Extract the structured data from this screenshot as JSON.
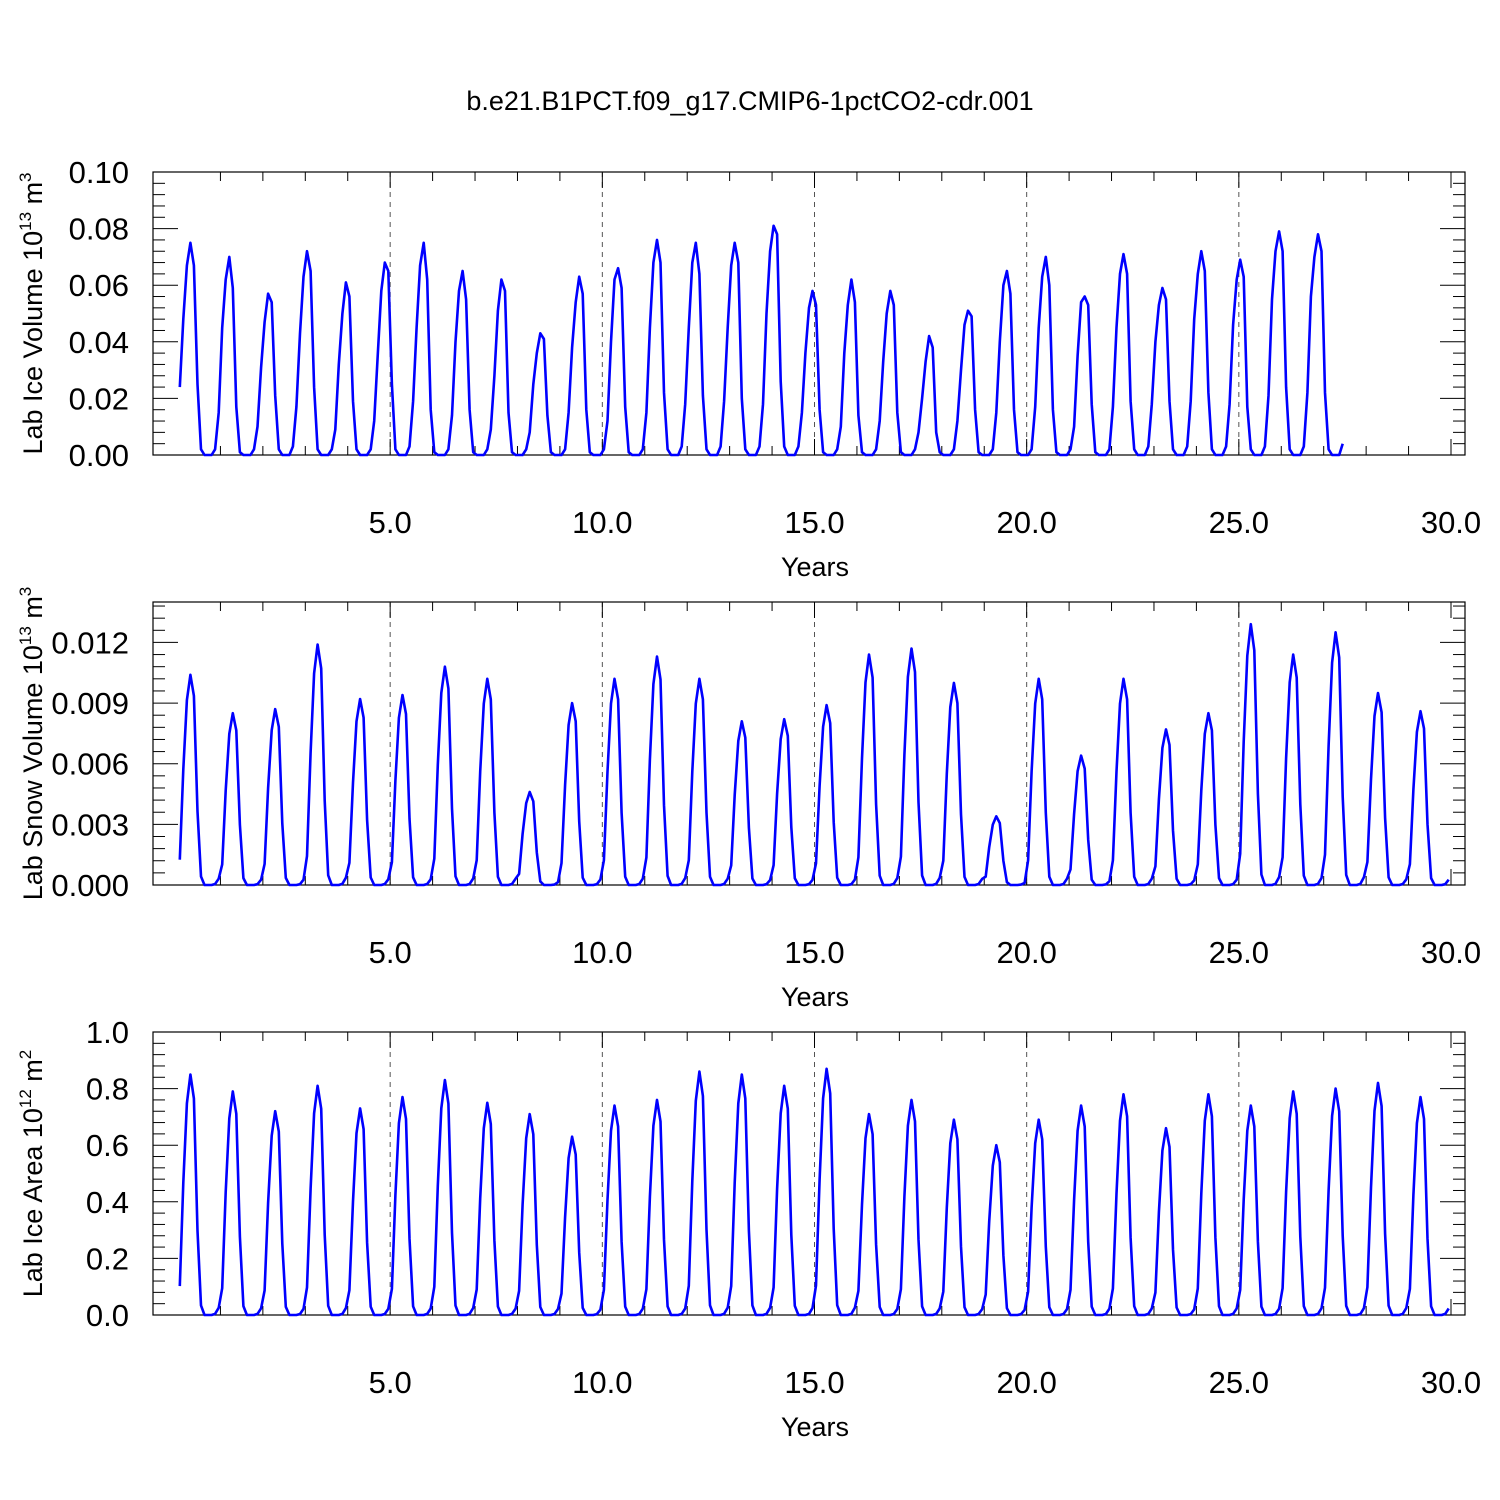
{
  "figure": {
    "title": "b.e21.B1PCT.f09_g17.CMIP6-1pctCO2-cdr.001"
  },
  "chart_data": [
    {
      "type": "line",
      "xlabel": "Years",
      "ylabel": {
        "prefix": "Lab Ice Volume 10",
        "exp": "13",
        "unit": " m",
        "unit_exp": "3"
      },
      "xlim": [
        0,
        30
      ],
      "ylim": [
        0,
        0.1
      ],
      "x_ticks": [
        "5.0",
        "10.0",
        "15.0",
        "20.0",
        "25.0",
        "30.0"
      ],
      "y_ticks": [
        "0.00",
        "0.02",
        "0.04",
        "0.06",
        "0.08",
        "0.10"
      ],
      "y_tick_values": [
        0,
        0.02,
        0.04,
        0.06,
        0.08,
        0.1
      ],
      "grid": "dashed vertical lines at 5, 10, 15, 20, 25",
      "line_color": "#0000ff",
      "series": [
        {
          "start_year": 0.042,
          "step": 0.0833,
          "values": [
            0.024,
            0.048,
            0.067,
            0.075,
            0.067,
            0.025,
            0.002,
            0,
            0,
            0,
            0.002,
            0.015,
            0.045,
            0.062,
            0.07,
            0.059,
            0.017,
            0.001,
            0,
            0,
            0,
            0.002,
            0.01,
            0.031,
            0.047,
            0.057,
            0.054,
            0.021,
            0.002,
            0,
            0,
            0,
            0.003,
            0.017,
            0.043,
            0.063,
            0.072,
            0.065,
            0.024,
            0.002,
            0,
            0,
            0,
            0.002,
            0.009,
            0.032,
            0.05,
            0.061,
            0.056,
            0.019,
            0.002,
            0,
            0,
            0,
            0.002,
            0.012,
            0.035,
            0.058,
            0.068,
            0.065,
            0.025,
            0.002,
            0,
            0,
            0,
            0.003,
            0.019,
            0.045,
            0.067,
            0.075,
            0.062,
            0.016,
            0.001,
            0,
            0,
            0,
            0.002,
            0.014,
            0.04,
            0.058,
            0.065,
            0.055,
            0.016,
            0.001,
            0,
            0,
            0,
            0.002,
            0.009,
            0.028,
            0.051,
            0.062,
            0.058,
            0.015,
            0.001,
            0,
            0,
            0,
            0.002,
            0.008,
            0.025,
            0.036,
            0.043,
            0.041,
            0.014,
            0.001,
            0,
            0,
            0,
            0.002,
            0.015,
            0.038,
            0.054,
            0.063,
            0.057,
            0.016,
            0.001,
            0,
            0,
            0,
            0.002,
            0.012,
            0.04,
            0.062,
            0.066,
            0.059,
            0.017,
            0.001,
            0,
            0,
            0,
            0.002,
            0.015,
            0.045,
            0.068,
            0.076,
            0.068,
            0.022,
            0.002,
            0,
            0,
            0,
            0.003,
            0.018,
            0.045,
            0.068,
            0.075,
            0.064,
            0.021,
            0.002,
            0,
            0,
            0,
            0.003,
            0.019,
            0.045,
            0.067,
            0.075,
            0.068,
            0.02,
            0.002,
            0,
            0,
            0,
            0.003,
            0.018,
            0.05,
            0.072,
            0.081,
            0.078,
            0.026,
            0.003,
            0,
            0,
            0,
            0.003,
            0.015,
            0.036,
            0.052,
            0.058,
            0.053,
            0.016,
            0.001,
            0,
            0,
            0,
            0.002,
            0.01,
            0.036,
            0.053,
            0.062,
            0.054,
            0.014,
            0.001,
            0,
            0,
            0,
            0.002,
            0.012,
            0.033,
            0.05,
            0.058,
            0.053,
            0.015,
            0.001,
            0,
            0,
            0,
            0.002,
            0.008,
            0.02,
            0.033,
            0.042,
            0.038,
            0.008,
            0.001,
            0,
            0,
            0,
            0.002,
            0.012,
            0.03,
            0.046,
            0.051,
            0.049,
            0.016,
            0.001,
            0,
            0,
            0,
            0.002,
            0.015,
            0.04,
            0.06,
            0.065,
            0.057,
            0.016,
            0.001,
            0,
            0,
            0,
            0.002,
            0.017,
            0.045,
            0.063,
            0.07,
            0.06,
            0.016,
            0.001,
            0,
            0,
            0,
            0.002,
            0.01,
            0.035,
            0.054,
            0.056,
            0.053,
            0.018,
            0.001,
            0,
            0,
            0,
            0.002,
            0.017,
            0.045,
            0.064,
            0.071,
            0.064,
            0.019,
            0.002,
            0,
            0,
            0,
            0.003,
            0.018,
            0.04,
            0.053,
            0.059,
            0.055,
            0.019,
            0.002,
            0,
            0,
            0,
            0.003,
            0.019,
            0.048,
            0.064,
            0.072,
            0.065,
            0.022,
            0.002,
            0,
            0,
            0,
            0.003,
            0.018,
            0.046,
            0.062,
            0.069,
            0.063,
            0.017,
            0.002,
            0,
            0,
            0,
            0.003,
            0.021,
            0.055,
            0.072,
            0.079,
            0.072,
            0.024,
            0.002,
            0,
            0,
            0,
            0.003,
            0.022,
            0.056,
            0.07,
            0.078,
            0.072,
            0.022,
            0.002,
            0,
            0,
            0,
            0.004
          ]
        }
      ]
    },
    {
      "type": "line",
      "xlabel": "Years",
      "ylabel": {
        "prefix": "Lab Snow Volume 10",
        "exp": "13",
        "unit": " m",
        "unit_exp": "3"
      },
      "xlim": [
        0,
        30
      ],
      "ylim": [
        0,
        0.014
      ],
      "x_ticks": [
        "5.0",
        "10.0",
        "15.0",
        "20.0",
        "25.0",
        "30.0"
      ],
      "y_ticks": [
        "0.000",
        "0.003",
        "0.006",
        "0.009",
        "0.012"
      ],
      "y_tick_values": [
        0,
        0.003,
        0.006,
        0.009,
        0.012
      ],
      "grid": "dashed vertical lines at 5, 10, 15, 20, 25",
      "line_color": "#0000ff",
      "series": [
        {
          "start_year": 0.042,
          "step": 0.0833,
          "peaks": [
            {
              "year": 0.25,
              "value": 0.0104
            },
            {
              "year": 1.25,
              "value": 0.0085
            },
            {
              "year": 2.25,
              "value": 0.0087
            },
            {
              "year": 3.25,
              "value": 0.0119
            },
            {
              "year": 4.25,
              "value": 0.0092
            },
            {
              "year": 5.25,
              "value": 0.0094
            },
            {
              "year": 6.25,
              "value": 0.0108
            },
            {
              "year": 7.25,
              "value": 0.0102
            },
            {
              "year": 8.25,
              "value": 0.0046
            },
            {
              "year": 9.25,
              "value": 0.009
            },
            {
              "year": 10.25,
              "value": 0.0102
            },
            {
              "year": 11.25,
              "value": 0.0113
            },
            {
              "year": 12.25,
              "value": 0.0102
            },
            {
              "year": 13.25,
              "value": 0.0081
            },
            {
              "year": 14.25,
              "value": 0.0082
            },
            {
              "year": 15.25,
              "value": 0.0089
            },
            {
              "year": 16.25,
              "value": 0.0114
            },
            {
              "year": 17.25,
              "value": 0.0117
            },
            {
              "year": 18.25,
              "value": 0.01
            },
            {
              "year": 19.25,
              "value": 0.0034
            },
            {
              "year": 20.25,
              "value": 0.0102
            },
            {
              "year": 21.25,
              "value": 0.0064
            },
            {
              "year": 22.25,
              "value": 0.0102
            },
            {
              "year": 23.25,
              "value": 0.0077
            },
            {
              "year": 24.25,
              "value": 0.0085
            },
            {
              "year": 25.25,
              "value": 0.0129
            },
            {
              "year": 26.25,
              "value": 0.0114
            },
            {
              "year": 27.25,
              "value": 0.0125
            },
            {
              "year": 28.25,
              "value": 0.0095
            },
            {
              "year": 29.25,
              "value": 0.0086
            }
          ]
        }
      ]
    },
    {
      "type": "line",
      "xlabel": "Years",
      "ylabel": {
        "prefix": "Lab Ice Area 10",
        "exp": "12",
        "unit": " m",
        "unit_exp": "2"
      },
      "xlim": [
        0,
        30
      ],
      "ylim": [
        0,
        1.0
      ],
      "x_ticks": [
        "5.0",
        "10.0",
        "15.0",
        "20.0",
        "25.0",
        "30.0"
      ],
      "y_ticks": [
        "0.0",
        "0.2",
        "0.4",
        "0.6",
        "0.8",
        "1.0"
      ],
      "y_tick_values": [
        0,
        0.2,
        0.4,
        0.6,
        0.8,
        1.0
      ],
      "grid": "dashed vertical lines at 5, 10, 15, 20, 25",
      "line_color": "#0000ff",
      "series": [
        {
          "start_year": 0.042,
          "step": 0.0833,
          "peaks": [
            {
              "year": 0.25,
              "value": 0.85
            },
            {
              "year": 1.25,
              "value": 0.79
            },
            {
              "year": 2.25,
              "value": 0.72
            },
            {
              "year": 3.25,
              "value": 0.81
            },
            {
              "year": 4.25,
              "value": 0.73
            },
            {
              "year": 5.25,
              "value": 0.77
            },
            {
              "year": 6.25,
              "value": 0.83
            },
            {
              "year": 7.25,
              "value": 0.75
            },
            {
              "year": 8.25,
              "value": 0.71
            },
            {
              "year": 9.25,
              "value": 0.63
            },
            {
              "year": 10.25,
              "value": 0.74
            },
            {
              "year": 11.25,
              "value": 0.76
            },
            {
              "year": 12.25,
              "value": 0.86
            },
            {
              "year": 13.25,
              "value": 0.85
            },
            {
              "year": 14.25,
              "value": 0.81
            },
            {
              "year": 15.25,
              "value": 0.87
            },
            {
              "year": 16.25,
              "value": 0.71
            },
            {
              "year": 17.25,
              "value": 0.76
            },
            {
              "year": 18.25,
              "value": 0.69
            },
            {
              "year": 19.25,
              "value": 0.6
            },
            {
              "year": 20.25,
              "value": 0.69
            },
            {
              "year": 21.25,
              "value": 0.74
            },
            {
              "year": 22.25,
              "value": 0.78
            },
            {
              "year": 23.25,
              "value": 0.66
            },
            {
              "year": 24.25,
              "value": 0.78
            },
            {
              "year": 25.25,
              "value": 0.74
            },
            {
              "year": 26.25,
              "value": 0.79
            },
            {
              "year": 27.25,
              "value": 0.8
            },
            {
              "year": 28.25,
              "value": 0.82
            },
            {
              "year": 29.25,
              "value": 0.77
            }
          ]
        }
      ]
    }
  ]
}
